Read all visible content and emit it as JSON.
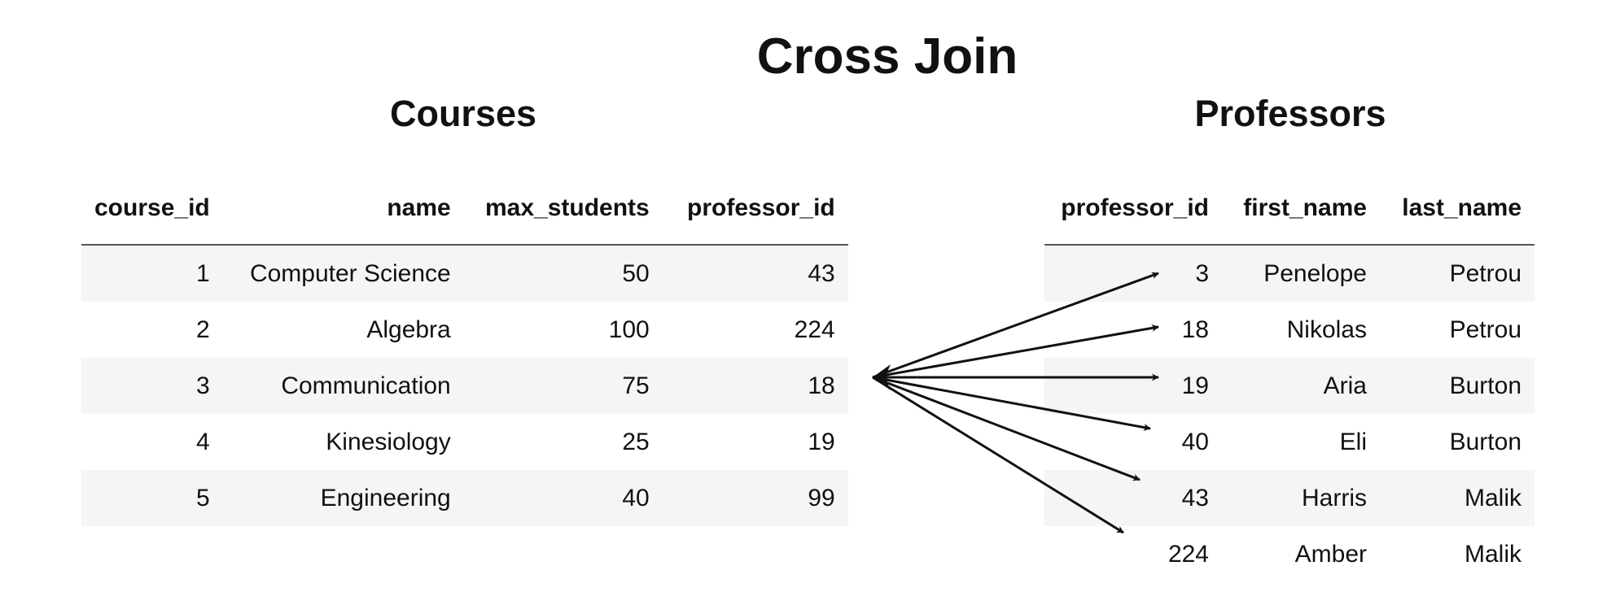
{
  "title": "Cross Join",
  "courses": {
    "title": "Courses",
    "columns": [
      "course_id",
      "name",
      "max_students",
      "professor_id"
    ],
    "rows": [
      [
        "1",
        "Computer Science",
        "50",
        "43"
      ],
      [
        "2",
        "Algebra",
        "100",
        "224"
      ],
      [
        "3",
        "Communication",
        "75",
        "18"
      ],
      [
        "4",
        "Kinesiology",
        "25",
        "19"
      ],
      [
        "5",
        "Engineering",
        "40",
        "99"
      ]
    ]
  },
  "professors": {
    "title": "Professors",
    "columns": [
      "professor_id",
      "first_name",
      "last_name"
    ],
    "rows": [
      [
        "3",
        "Penelope",
        "Petrou"
      ],
      [
        "18",
        "Nikolas",
        "Petrou"
      ],
      [
        "19",
        "Aria",
        "Burton"
      ],
      [
        "40",
        "Eli",
        "Burton"
      ],
      [
        "43",
        "Harris",
        "Malik"
      ],
      [
        "224",
        "Amber",
        "Malik"
      ]
    ]
  },
  "colors": {
    "arrow": "#111111",
    "row_stripe": "#f5f5f5",
    "header_rule": "#555555"
  }
}
